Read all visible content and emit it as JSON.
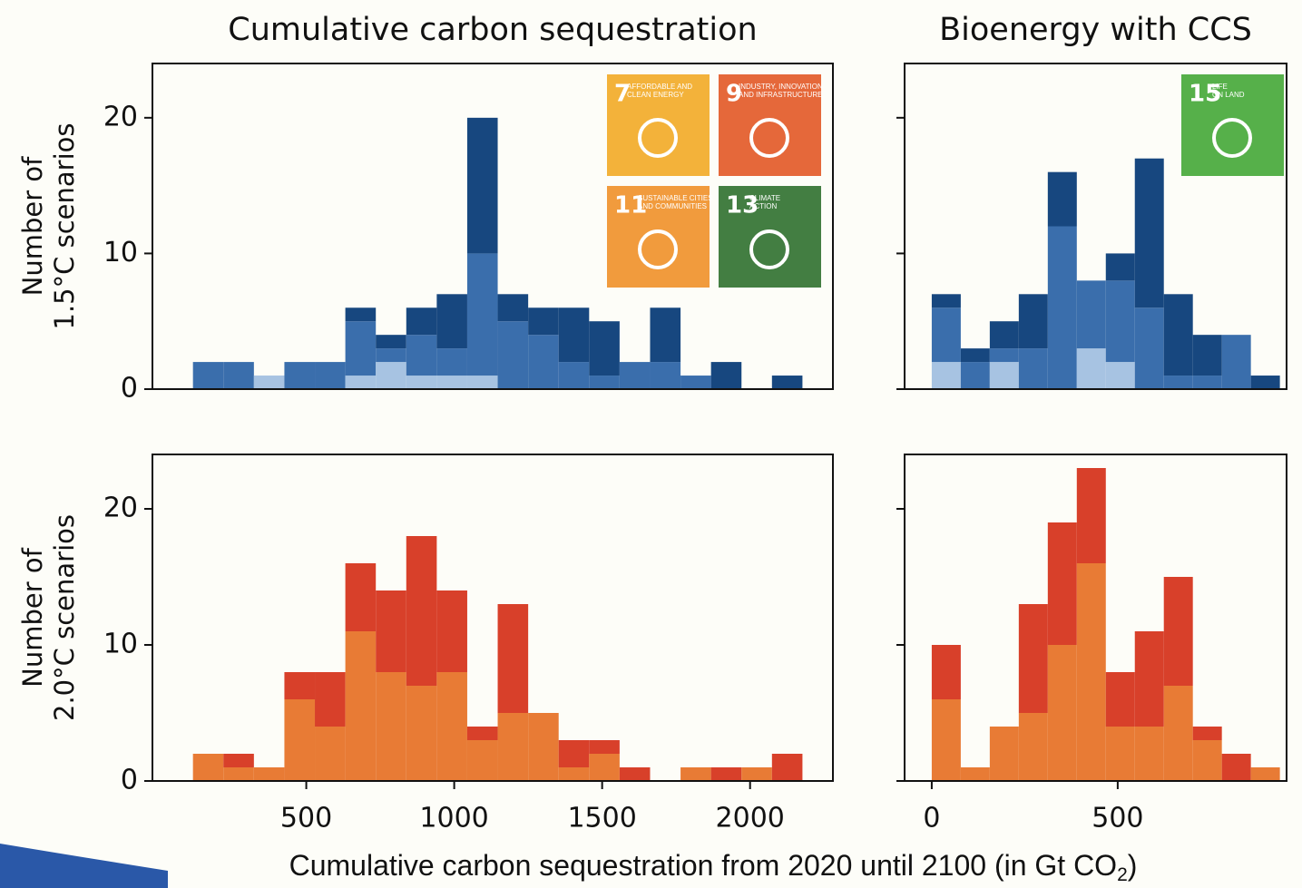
{
  "figure": {
    "xlabel": {
      "text": "Cumulative carbon sequestration from 2020 until 2100 (in Gt CO",
      "subscript": "2",
      "suffix": ")"
    }
  },
  "chart_data": [
    {
      "type": "histogram",
      "title": "Cumulative carbon sequestration",
      "ylabel": [
        "Number of",
        "1.5°C scenarios"
      ],
      "bins": [
        117,
        220,
        323,
        426,
        529,
        632,
        735,
        838,
        941,
        1044,
        1147,
        1250,
        1353,
        1456,
        1559,
        1662,
        1765,
        1868,
        1971,
        2074,
        2177
      ],
      "series": [
        {
          "color": "#a7c3e2",
          "values": [
            0,
            0,
            1,
            0,
            0,
            1,
            2,
            1,
            1,
            1,
            0,
            0,
            0,
            0,
            0,
            0,
            0,
            0,
            0,
            0
          ]
        },
        {
          "color": "#3a6eac",
          "values": [
            2,
            2,
            0,
            2,
            2,
            4,
            1,
            3,
            2,
            9,
            5,
            4,
            2,
            1,
            2,
            2,
            1,
            0,
            0,
            0
          ]
        },
        {
          "color": "#17477f",
          "values": [
            0,
            0,
            0,
            0,
            0,
            1,
            1,
            2,
            4,
            10,
            2,
            2,
            4,
            4,
            0,
            4,
            0,
            2,
            0,
            1
          ]
        }
      ],
      "xlim": [
        -20,
        2280
      ],
      "ylim": [
        0,
        24
      ],
      "yticks": [
        0,
        10,
        20
      ],
      "ytick_labels": true
    },
    {
      "type": "histogram",
      "title": "Bioenergy with CCS",
      "bins": [
        0,
        78,
        156,
        234,
        312,
        390,
        468,
        546,
        624,
        702,
        780,
        858,
        936
      ],
      "series": [
        {
          "color": "#a7c3e2",
          "values": [
            2,
            0,
            2,
            0,
            0,
            3,
            2,
            0,
            0,
            0,
            0,
            0
          ]
        },
        {
          "color": "#3a6eac",
          "values": [
            4,
            2,
            1,
            3,
            12,
            5,
            6,
            6,
            1,
            1,
            4,
            0
          ]
        },
        {
          "color": "#17477f",
          "values": [
            1,
            1,
            2,
            4,
            4,
            0,
            2,
            11,
            6,
            3,
            0,
            1
          ]
        }
      ],
      "xlim": [
        -73,
        954
      ],
      "ylim": [
        0,
        24
      ],
      "yticks": [
        0,
        10,
        20
      ],
      "ytick_labels": false
    },
    {
      "type": "histogram",
      "ylabel": [
        "Number of",
        "2.0°C scenarios"
      ],
      "bins": [
        117,
        220,
        323,
        426,
        529,
        632,
        735,
        838,
        941,
        1044,
        1147,
        1250,
        1353,
        1456,
        1559,
        1662,
        1765,
        1868,
        1971,
        2074,
        2177
      ],
      "series": [
        {
          "color": "#e87b35",
          "values": [
            2,
            1,
            1,
            6,
            4,
            11,
            8,
            7,
            8,
            3,
            5,
            5,
            1,
            2,
            0,
            0,
            1,
            0,
            1,
            0
          ]
        },
        {
          "color": "#d8402a",
          "values": [
            0,
            1,
            0,
            2,
            4,
            5,
            6,
            11,
            6,
            1,
            8,
            0,
            2,
            1,
            1,
            0,
            0,
            1,
            0,
            2
          ]
        }
      ],
      "xlim": [
        -20,
        2280
      ],
      "ylim": [
        0,
        24
      ],
      "yticks": [
        0,
        10,
        20
      ],
      "ytick_labels": true,
      "xticks": [
        500,
        1000,
        1500,
        2000
      ]
    },
    {
      "type": "histogram",
      "bins": [
        0,
        78,
        156,
        234,
        312,
        390,
        468,
        546,
        624,
        702,
        780,
        858,
        936
      ],
      "series": [
        {
          "color": "#e87b35",
          "values": [
            6,
            1,
            4,
            5,
            10,
            16,
            4,
            4,
            7,
            3,
            0,
            1
          ]
        },
        {
          "color": "#d8402a",
          "values": [
            4,
            0,
            0,
            8,
            9,
            7,
            4,
            7,
            8,
            1,
            2,
            0
          ]
        }
      ],
      "xlim": [
        -73,
        954
      ],
      "ylim": [
        0,
        24
      ],
      "yticks": [
        0,
        10,
        20
      ],
      "ytick_labels": false,
      "xticks": [
        0,
        500
      ]
    }
  ],
  "icons": [
    {
      "number": "7",
      "label": [
        "AFFORDABLE AND",
        "CLEAN ENERGY"
      ],
      "color": "#f3b23a"
    },
    {
      "number": "9",
      "label": [
        "INDUSTRY, INNOVATION",
        "AND INFRASTRUCTURE"
      ],
      "color": "#e5683a"
    },
    {
      "number": "11",
      "label": [
        "SUSTAINABLE CITIES",
        "AND COMMUNITIES"
      ],
      "color": "#f19b3d"
    },
    {
      "number": "13",
      "label": [
        "CLIMATE",
        "ACTION"
      ],
      "color": "#437e42"
    },
    {
      "number": "15",
      "label": [
        "LIFE",
        "ON LAND"
      ],
      "color": "#56b04a"
    }
  ]
}
